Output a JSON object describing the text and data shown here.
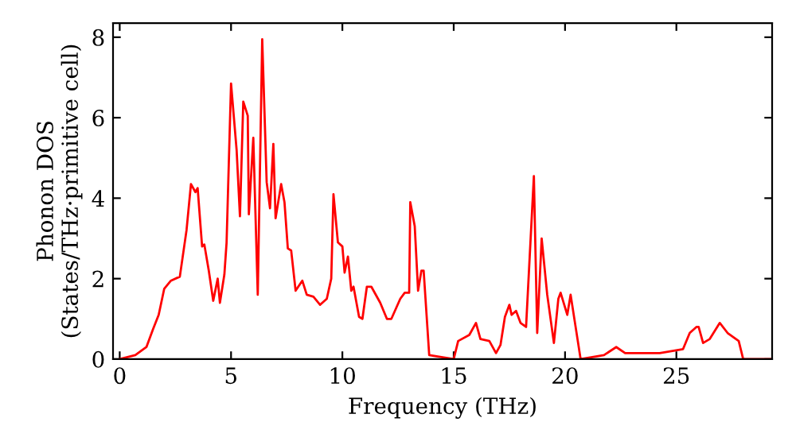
{
  "chart_data": {
    "type": "line",
    "xlabel": "Frequency (THz)",
    "ylabel": "Phonon DOS\n(States/THz·primitive cell)",
    "xlim": [
      -0.3,
      29.3
    ],
    "ylim": [
      0,
      8.35
    ],
    "xticks": [
      0,
      5,
      10,
      15,
      20,
      25
    ],
    "yticks": [
      0,
      2,
      4,
      6,
      8
    ],
    "grid": false,
    "marker": "none",
    "line_style": "solid",
    "series": [
      {
        "color": "#ff0000",
        "x": [
          0,
          0.7,
          1.2,
          1.5,
          1.75,
          2.0,
          2.3,
          2.7,
          3.0,
          3.2,
          3.4,
          3.5,
          3.7,
          3.8,
          4.0,
          4.2,
          4.4,
          4.5,
          4.7,
          4.8,
          5.0,
          5.25,
          5.4,
          5.55,
          5.75,
          5.8,
          6.0,
          6.2,
          6.4,
          6.6,
          6.75,
          6.9,
          7.0,
          7.25,
          7.4,
          7.55,
          7.7,
          7.9,
          8.2,
          8.4,
          8.7,
          9.0,
          9.3,
          9.5,
          9.6,
          9.8,
          10.0,
          10.1,
          10.25,
          10.4,
          10.5,
          10.75,
          10.9,
          11.1,
          11.3,
          11.7,
          12.0,
          12.2,
          12.6,
          12.8,
          13.0,
          13.05,
          13.25,
          13.4,
          13.55,
          13.65,
          13.9,
          15.0,
          15.2,
          15.7,
          16.0,
          16.2,
          16.6,
          16.9,
          17.1,
          17.3,
          17.5,
          17.6,
          17.8,
          18.0,
          18.25,
          18.6,
          18.75,
          18.95,
          19.2,
          19.5,
          19.7,
          19.8,
          20.1,
          20.25,
          20.7,
          21.75,
          22.3,
          22.7,
          24.25,
          25.3,
          25.6,
          25.9,
          26.0,
          26.2,
          26.5,
          26.95,
          27.3,
          27.8,
          28.0,
          29.3
        ],
        "values": [
          0,
          0.1,
          0.3,
          0.75,
          1.1,
          1.75,
          1.95,
          2.05,
          3.2,
          4.35,
          4.15,
          4.25,
          2.8,
          2.85,
          2.2,
          1.45,
          2.0,
          1.4,
          2.1,
          2.9,
          6.85,
          5.2,
          3.55,
          6.4,
          6.05,
          3.6,
          5.5,
          1.6,
          7.95,
          4.4,
          3.75,
          5.35,
          3.5,
          4.35,
          3.9,
          2.75,
          2.7,
          1.7,
          1.95,
          1.6,
          1.55,
          1.35,
          1.5,
          2.0,
          4.1,
          2.9,
          2.8,
          2.15,
          2.55,
          1.7,
          1.8,
          1.05,
          1.0,
          1.8,
          1.8,
          1.4,
          1.0,
          1.0,
          1.5,
          1.65,
          1.65,
          3.9,
          3.3,
          1.7,
          2.2,
          2.2,
          0.1,
          0,
          0.45,
          0.6,
          0.9,
          0.5,
          0.45,
          0.15,
          0.35,
          1.05,
          1.35,
          1.1,
          1.2,
          0.9,
          0.8,
          4.55,
          0.65,
          3.0,
          1.6,
          0.4,
          1.5,
          1.65,
          1.1,
          1.6,
          0,
          0.1,
          0.3,
          0.15,
          0.15,
          0.25,
          0.65,
          0.8,
          0.8,
          0.4,
          0.5,
          0.9,
          0.65,
          0.45,
          0,
          0
        ]
      }
    ]
  }
}
